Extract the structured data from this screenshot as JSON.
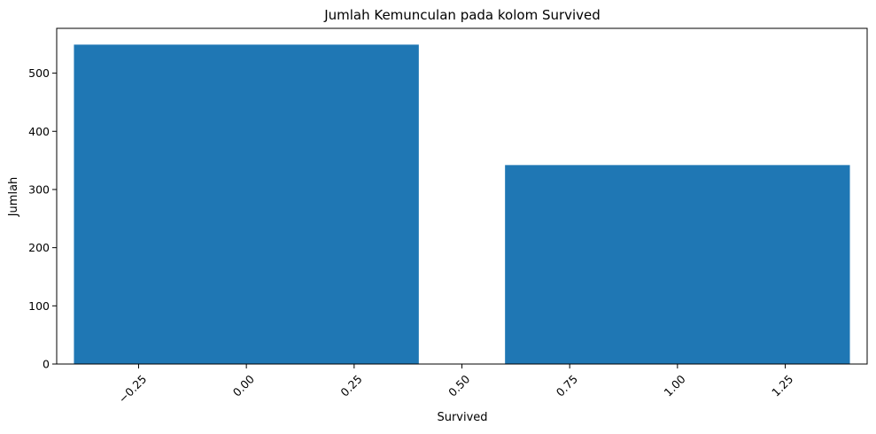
{
  "chart_data": {
    "type": "bar",
    "title": "Jumlah Kemunculan pada kolom Survived",
    "xlabel": "Survived",
    "ylabel": "Jumlah",
    "bar_color": "#1f77b4",
    "bar_width": 0.8,
    "xlim": [
      -0.44,
      1.44
    ],
    "ylim": [
      0,
      577
    ],
    "x": [
      0,
      1
    ],
    "values": [
      549,
      342
    ],
    "x_ticks": [
      -0.25,
      0.0,
      0.25,
      0.5,
      0.75,
      1.0,
      1.25
    ],
    "x_tick_labels": [
      "−0.25",
      "0.00",
      "0.25",
      "0.50",
      "0.75",
      "1.00",
      "1.25"
    ],
    "y_ticks": [
      0,
      100,
      200,
      300,
      400,
      500
    ],
    "y_tick_labels": [
      "0",
      "100",
      "200",
      "300",
      "400",
      "500"
    ],
    "x_tick_rotation": -45,
    "grid": false,
    "legend": "none"
  }
}
